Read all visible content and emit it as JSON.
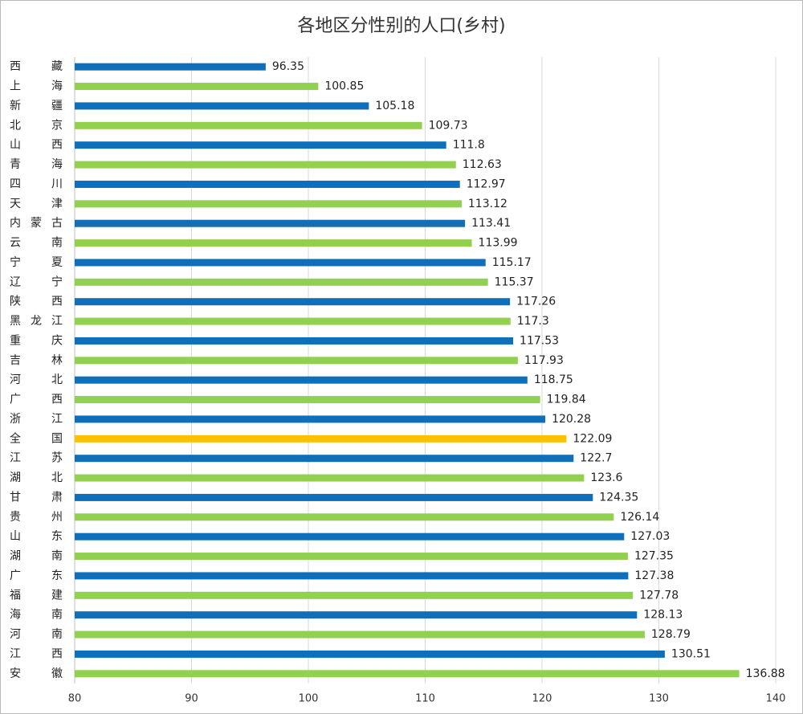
{
  "chart_data": {
    "type": "barh",
    "title": "各地区分性别的人口(乡村)",
    "categories": [
      "西藏",
      "上海",
      "新疆",
      "北京",
      "山西",
      "青海",
      "四川",
      "天津",
      "内蒙古",
      "云南",
      "宁夏",
      "辽宁",
      "陕西",
      "黑龙江",
      "重庆",
      "吉林",
      "河北",
      "广西",
      "浙江",
      "全国",
      "江苏",
      "湖北",
      "甘肃",
      "贵州",
      "山东",
      "湖南",
      "广东",
      "福建",
      "海南",
      "河南",
      "江西",
      "安徽"
    ],
    "values": [
      96.35,
      100.85,
      105.18,
      109.73,
      111.8,
      112.63,
      112.97,
      113.12,
      113.41,
      113.99,
      115.17,
      115.37,
      117.26,
      117.3,
      117.53,
      117.93,
      118.75,
      119.84,
      120.28,
      122.09,
      122.7,
      123.6,
      124.35,
      126.14,
      127.03,
      127.35,
      127.38,
      127.78,
      128.13,
      128.79,
      130.51,
      136.88
    ],
    "colors": [
      "#0f6fba",
      "#92d050",
      "#0f6fba",
      "#92d050",
      "#0f6fba",
      "#92d050",
      "#0f6fba",
      "#92d050",
      "#0f6fba",
      "#92d050",
      "#0f6fba",
      "#92d050",
      "#0f6fba",
      "#92d050",
      "#0f6fba",
      "#92d050",
      "#0f6fba",
      "#92d050",
      "#0f6fba",
      "#ffc000",
      "#0f6fba",
      "#92d050",
      "#0f6fba",
      "#92d050",
      "#0f6fba",
      "#92d050",
      "#0f6fba",
      "#92d050",
      "#0f6fba",
      "#92d050",
      "#0f6fba",
      "#92d050"
    ],
    "xlim": [
      80,
      140
    ],
    "xticks": [
      80,
      90,
      100,
      110,
      120,
      130,
      140
    ],
    "grid": true
  }
}
